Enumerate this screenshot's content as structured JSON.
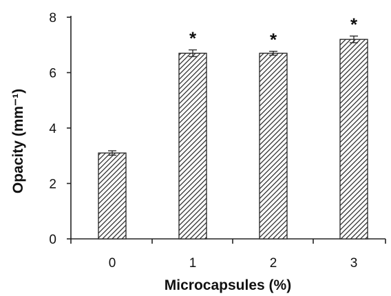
{
  "chart_data": {
    "type": "bar",
    "categories": [
      "0",
      "1",
      "2",
      "3"
    ],
    "values": [
      3.1,
      6.7,
      6.7,
      7.2
    ],
    "errors": [
      0.08,
      0.12,
      0.07,
      0.12
    ],
    "significance": [
      "",
      "*",
      "*",
      "*"
    ],
    "xlabel": "Microcapsules (%)",
    "ylabel": "Opacity (mm⁻¹)",
    "ylim": [
      0,
      8
    ],
    "yticks": [
      0,
      2,
      4,
      6,
      8
    ],
    "grid": false,
    "bar_fill": "diagonal-hatch",
    "colors": {
      "bar_stroke": "#222222",
      "axis": "#222222"
    }
  }
}
